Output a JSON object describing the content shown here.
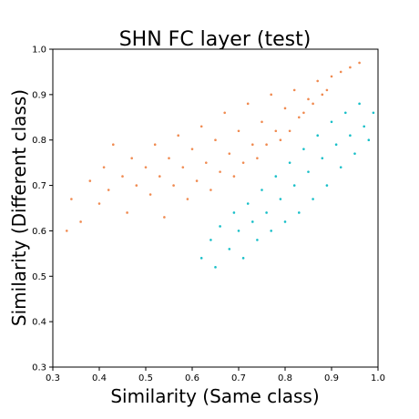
{
  "chart_data": {
    "type": "scatter",
    "title": "SHN FC layer  (test)",
    "xlabel": "Similarity (Same class)",
    "ylabel": "Similarity (Different class)",
    "xlim": [
      0.3,
      1.0
    ],
    "ylim": [
      0.3,
      1.0
    ],
    "x_ticks": [
      "0.3",
      "0.4",
      "0.5",
      "0.6",
      "0.7",
      "0.8",
      "0.9",
      "1.0"
    ],
    "y_ticks": [
      "0.3",
      "0.4",
      "0.5",
      "0.6",
      "0.7",
      "0.8",
      "0.9",
      "1.0"
    ],
    "grid": false,
    "legend": false,
    "colors": {
      "different_above": "#f08a50",
      "same_above": "#17bfc8"
    },
    "series": [
      {
        "color": "#f08a50",
        "points": [
          [
            0.33,
            0.6
          ],
          [
            0.34,
            0.67
          ],
          [
            0.36,
            0.62
          ],
          [
            0.38,
            0.71
          ],
          [
            0.4,
            0.66
          ],
          [
            0.41,
            0.74
          ],
          [
            0.42,
            0.69
          ],
          [
            0.43,
            0.79
          ],
          [
            0.45,
            0.72
          ],
          [
            0.46,
            0.64
          ],
          [
            0.47,
            0.76
          ],
          [
            0.48,
            0.7
          ],
          [
            0.5,
            0.74
          ],
          [
            0.51,
            0.68
          ],
          [
            0.52,
            0.79
          ],
          [
            0.53,
            0.72
          ],
          [
            0.54,
            0.63
          ],
          [
            0.55,
            0.76
          ],
          [
            0.56,
            0.7
          ],
          [
            0.57,
            0.81
          ],
          [
            0.58,
            0.74
          ],
          [
            0.59,
            0.67
          ],
          [
            0.6,
            0.78
          ],
          [
            0.61,
            0.71
          ],
          [
            0.62,
            0.83
          ],
          [
            0.63,
            0.75
          ],
          [
            0.64,
            0.69
          ],
          [
            0.65,
            0.8
          ],
          [
            0.66,
            0.73
          ],
          [
            0.67,
            0.86
          ],
          [
            0.68,
            0.77
          ],
          [
            0.69,
            0.72
          ],
          [
            0.7,
            0.82
          ],
          [
            0.71,
            0.75
          ],
          [
            0.72,
            0.88
          ],
          [
            0.73,
            0.79
          ],
          [
            0.74,
            0.76
          ],
          [
            0.75,
            0.84
          ],
          [
            0.76,
            0.79
          ],
          [
            0.77,
            0.9
          ],
          [
            0.78,
            0.82
          ],
          [
            0.79,
            0.8
          ],
          [
            0.8,
            0.87
          ],
          [
            0.81,
            0.82
          ],
          [
            0.82,
            0.91
          ],
          [
            0.83,
            0.85
          ],
          [
            0.84,
            0.86
          ],
          [
            0.85,
            0.89
          ],
          [
            0.86,
            0.88
          ],
          [
            0.87,
            0.93
          ],
          [
            0.88,
            0.9
          ],
          [
            0.89,
            0.91
          ],
          [
            0.9,
            0.94
          ],
          [
            0.92,
            0.95
          ],
          [
            0.94,
            0.96
          ],
          [
            0.96,
            0.97
          ]
        ]
      },
      {
        "color": "#17bfc8",
        "points": [
          [
            0.62,
            0.54
          ],
          [
            0.64,
            0.58
          ],
          [
            0.65,
            0.52
          ],
          [
            0.66,
            0.61
          ],
          [
            0.68,
            0.56
          ],
          [
            0.69,
            0.64
          ],
          [
            0.7,
            0.6
          ],
          [
            0.71,
            0.54
          ],
          [
            0.72,
            0.66
          ],
          [
            0.73,
            0.62
          ],
          [
            0.74,
            0.58
          ],
          [
            0.75,
            0.69
          ],
          [
            0.76,
            0.64
          ],
          [
            0.77,
            0.6
          ],
          [
            0.78,
            0.72
          ],
          [
            0.79,
            0.67
          ],
          [
            0.8,
            0.62
          ],
          [
            0.81,
            0.75
          ],
          [
            0.82,
            0.7
          ],
          [
            0.83,
            0.64
          ],
          [
            0.84,
            0.78
          ],
          [
            0.85,
            0.73
          ],
          [
            0.86,
            0.67
          ],
          [
            0.87,
            0.81
          ],
          [
            0.88,
            0.76
          ],
          [
            0.89,
            0.7
          ],
          [
            0.9,
            0.84
          ],
          [
            0.91,
            0.79
          ],
          [
            0.92,
            0.74
          ],
          [
            0.93,
            0.86
          ],
          [
            0.94,
            0.81
          ],
          [
            0.95,
            0.77
          ],
          [
            0.96,
            0.88
          ],
          [
            0.97,
            0.83
          ],
          [
            0.98,
            0.8
          ],
          [
            0.99,
            0.86
          ]
        ]
      }
    ]
  }
}
